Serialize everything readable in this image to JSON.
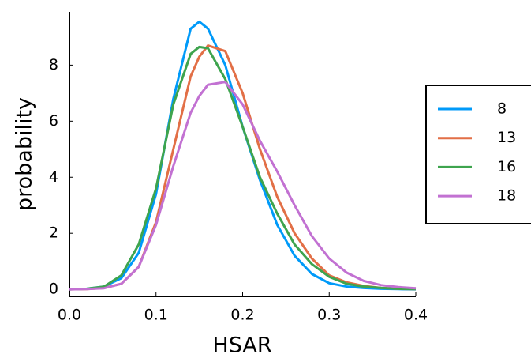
{
  "chart_data": {
    "type": "line",
    "xlabel": "HSAR",
    "ylabel": "probability",
    "x": [
      0,
      0.02,
      0.04,
      0.06,
      0.08,
      0.1,
      0.12,
      0.14,
      0.15,
      0.16,
      0.18,
      0.2,
      0.22,
      0.24,
      0.26,
      0.28,
      0.3,
      0.32,
      0.34,
      0.36,
      0.38,
      0.4
    ],
    "series": [
      {
        "name": "8",
        "color": "#009af9",
        "values": [
          0,
          0.02,
          0.1,
          0.4,
          1.3,
          3.4,
          6.8,
          9.3,
          9.55,
          9.3,
          8.0,
          5.8,
          3.9,
          2.3,
          1.2,
          0.55,
          0.22,
          0.1,
          0.05,
          0.02,
          0.01,
          0
        ]
      },
      {
        "name": "13",
        "color": "#e26f46",
        "values": [
          0,
          0.01,
          0.05,
          0.2,
          0.8,
          2.4,
          5.0,
          7.6,
          8.3,
          8.7,
          8.5,
          7.0,
          5.0,
          3.3,
          2.0,
          1.1,
          0.5,
          0.25,
          0.12,
          0.05,
          0.02,
          0.01
        ]
      },
      {
        "name": "16",
        "color": "#3ea44e",
        "values": [
          0,
          0.02,
          0.1,
          0.5,
          1.6,
          3.6,
          6.6,
          8.4,
          8.65,
          8.6,
          7.5,
          5.8,
          4.0,
          2.7,
          1.6,
          0.9,
          0.45,
          0.2,
          0.1,
          0.05,
          0.02,
          0.01
        ]
      },
      {
        "name": "18",
        "color": "#c271d2",
        "values": [
          0,
          0.01,
          0.04,
          0.2,
          0.8,
          2.3,
          4.4,
          6.3,
          6.9,
          7.3,
          7.4,
          6.6,
          5.3,
          4.2,
          3.0,
          1.9,
          1.1,
          0.6,
          0.3,
          0.15,
          0.08,
          0.04
        ]
      }
    ],
    "xlim": [
      0,
      0.4
    ],
    "xticks": [
      {
        "value": 0,
        "label": "0.0"
      },
      0.1,
      0.2,
      0.3,
      0.4
    ],
    "ylim": [
      -0.25,
      9.9
    ],
    "yticks": [
      0,
      2,
      4,
      6,
      8
    ],
    "grid": false,
    "legend": "right"
  }
}
